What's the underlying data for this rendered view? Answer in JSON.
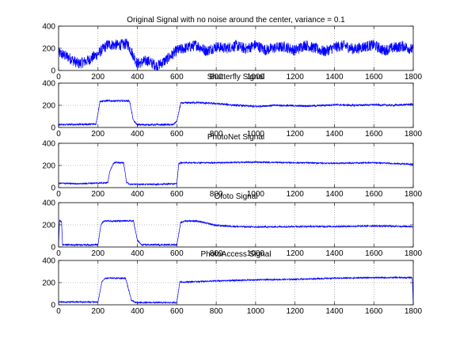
{
  "figure": {
    "background": "#ffffff",
    "line_color": "#0000ff",
    "grid_color": "#808080"
  },
  "chart_data": [
    {
      "type": "line",
      "title": "Original Signal with no noise around the center, variance = 0.1",
      "xlabel": "",
      "ylabel": "",
      "xlim": [
        0,
        1800
      ],
      "ylim": [
        0,
        400
      ],
      "xticks": [
        0,
        200,
        400,
        600,
        800,
        1000,
        1200,
        1400,
        1600,
        1800
      ],
      "yticks": [
        0,
        200,
        400
      ],
      "grid": true,
      "series": [
        {
          "values_sampled_every_50_samples": [
            160,
            120,
            60,
            90,
            150,
            235,
            228,
            240,
            60,
            90,
            40,
            100,
            180,
            205,
            230,
            175,
            215,
            200,
            225,
            195,
            230,
            185,
            205,
            215,
            180,
            232,
            200,
            170,
            210,
            225,
            190,
            215,
            230,
            180,
            205,
            220,
            185
          ],
          "x": [
            0,
            50,
            100,
            150,
            200,
            250,
            300,
            350,
            400,
            450,
            500,
            550,
            600,
            650,
            700,
            750,
            800,
            850,
            900,
            950,
            1000,
            1050,
            1100,
            1150,
            1200,
            1250,
            1300,
            1350,
            1400,
            1450,
            1500,
            1550,
            1600,
            1650,
            1700,
            1750,
            1800
          ],
          "values": [
            160,
            120,
            60,
            90,
            150,
            235,
            228,
            240,
            60,
            90,
            40,
            100,
            180,
            205,
            230,
            175,
            215,
            200,
            225,
            195,
            230,
            185,
            205,
            215,
            180,
            232,
            200,
            170,
            210,
            225,
            190,
            215,
            230,
            180,
            205,
            220,
            185
          ],
          "noise": 50
        }
      ]
    },
    {
      "type": "line",
      "title": "Shutterfly Signal",
      "xlim": [
        0,
        1800
      ],
      "ylim": [
        0,
        400
      ],
      "xticks": [
        0,
        200,
        400,
        600,
        800,
        1000,
        1200,
        1400,
        1600,
        1800
      ],
      "yticks": [
        0,
        200,
        400
      ],
      "grid": true,
      "series": [
        {
          "x": [
            0,
            190,
            210,
            240,
            360,
            380,
            400,
            580,
            600,
            620,
            700,
            800,
            900,
            1000,
            1100,
            1200,
            1300,
            1400,
            1500,
            1600,
            1700,
            1800
          ],
          "values": [
            25,
            30,
            235,
            240,
            240,
            60,
            25,
            25,
            55,
            220,
            225,
            215,
            200,
            190,
            200,
            195,
            195,
            205,
            200,
            205,
            200,
            210
          ],
          "noise": 8
        }
      ]
    },
    {
      "type": "line",
      "title": "PhotoNet Signal",
      "xlim": [
        0,
        1800
      ],
      "ylim": [
        0,
        400
      ],
      "xticks": [
        0,
        200,
        400,
        600,
        800,
        1000,
        1200,
        1400,
        1600,
        1800
      ],
      "yticks": [
        0,
        200,
        400
      ],
      "grid": true,
      "series": [
        {
          "x": [
            0,
            100,
            250,
            260,
            280,
            330,
            345,
            360,
            500,
            600,
            610,
            620,
            800,
            1000,
            1200,
            1400,
            1600,
            1800
          ],
          "values": [
            40,
            35,
            45,
            150,
            225,
            225,
            50,
            30,
            30,
            35,
            215,
            225,
            225,
            230,
            225,
            220,
            225,
            210
          ],
          "noise": 6
        }
      ]
    },
    {
      "type": "line",
      "title": "Ofoto Signal",
      "xlim": [
        0,
        1800
      ],
      "ylim": [
        0,
        400
      ],
      "xticks": [
        0,
        200,
        400,
        600,
        800,
        1000,
        1200,
        1400,
        1600,
        1800
      ],
      "yticks": [
        0,
        200,
        400
      ],
      "grid": true,
      "series": [
        {
          "x": [
            0,
            5,
            15,
            20,
            200,
            215,
            230,
            380,
            400,
            420,
            600,
            620,
            640,
            700,
            800,
            900,
            1000,
            1200,
            1400,
            1600,
            1800
          ],
          "values": [
            10,
            240,
            230,
            20,
            20,
            200,
            235,
            235,
            60,
            20,
            20,
            220,
            235,
            235,
            195,
            185,
            180,
            185,
            185,
            190,
            185
          ],
          "noise": 7
        }
      ]
    },
    {
      "type": "line",
      "title": "PhotoAccess Signal",
      "xlim": [
        0,
        1800
      ],
      "ylim": [
        0,
        400
      ],
      "xticks": [
        0,
        200,
        400,
        600,
        800,
        1000,
        1200,
        1400,
        1600,
        1800
      ],
      "yticks": [
        0,
        200,
        400
      ],
      "grid": true,
      "series": [
        {
          "x": [
            0,
            200,
            220,
            240,
            340,
            370,
            390,
            600,
            615,
            630,
            800,
            1000,
            1200,
            1400,
            1600,
            1795,
            1800
          ],
          "values": [
            25,
            25,
            210,
            240,
            240,
            40,
            20,
            20,
            205,
            205,
            215,
            225,
            230,
            240,
            245,
            245,
            0
          ],
          "noise": 6
        }
      ]
    }
  ]
}
